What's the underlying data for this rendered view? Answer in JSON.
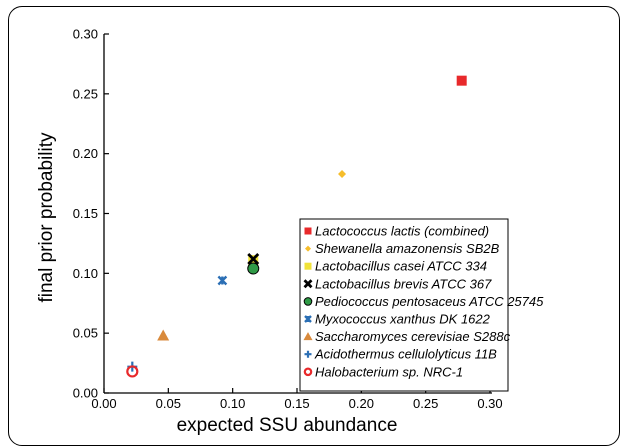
{
  "chart_data": {
    "type": "scatter",
    "xlabel": "expected SSU abundance",
    "ylabel": "final prior probability",
    "xlim": [
      0,
      0.3
    ],
    "ylim": [
      0,
      0.3
    ],
    "x_ticks": [
      "0.00",
      "0.05",
      "0.10",
      "0.15",
      "0.20",
      "0.25",
      "0.30"
    ],
    "y_ticks": [
      "0.00",
      "0.05",
      "0.10",
      "0.15",
      "0.20",
      "0.25",
      "0.30"
    ],
    "grid": false,
    "legend_position": "bottom-right",
    "series": [
      {
        "name": "Lactococcus lactis (combined)",
        "marker": "square",
        "color": "#e8292b",
        "x": 0.278,
        "y": 0.261
      },
      {
        "name": "Shewanella amazonensis SB2B",
        "marker": "diamond",
        "color": "#f6bd2b",
        "x": 0.185,
        "y": 0.183
      },
      {
        "name": "Lactobacillus casei ATCC 334",
        "marker": "square",
        "color": "#f0e238",
        "x": 0.116,
        "y": 0.111
      },
      {
        "name": "Lactobacillus brevis ATCC 367",
        "marker": "x",
        "color": "#000000",
        "x": 0.116,
        "y": 0.112
      },
      {
        "name": "Pediococcus pentosaceus ATCC 25745",
        "marker": "circle",
        "color": "#2f9a46",
        "x": 0.116,
        "y": 0.104
      },
      {
        "name": "Myxococcus xanthus DK 1622",
        "marker": "star",
        "color": "#2b6fb5",
        "x": 0.092,
        "y": 0.094
      },
      {
        "name": "Saccharomyces cerevisiae S288c",
        "marker": "triangle",
        "color": "#d98a3c",
        "x": 0.046,
        "y": 0.048
      },
      {
        "name": "Acidothermus cellulolyticus 11B",
        "marker": "plus",
        "color": "#2b6fb5",
        "x": 0.022,
        "y": 0.022
      },
      {
        "name": "Halobacterium sp. NRC-1",
        "marker": "open-circle",
        "color": "#e8292b",
        "x": 0.022,
        "y": 0.018
      }
    ]
  }
}
